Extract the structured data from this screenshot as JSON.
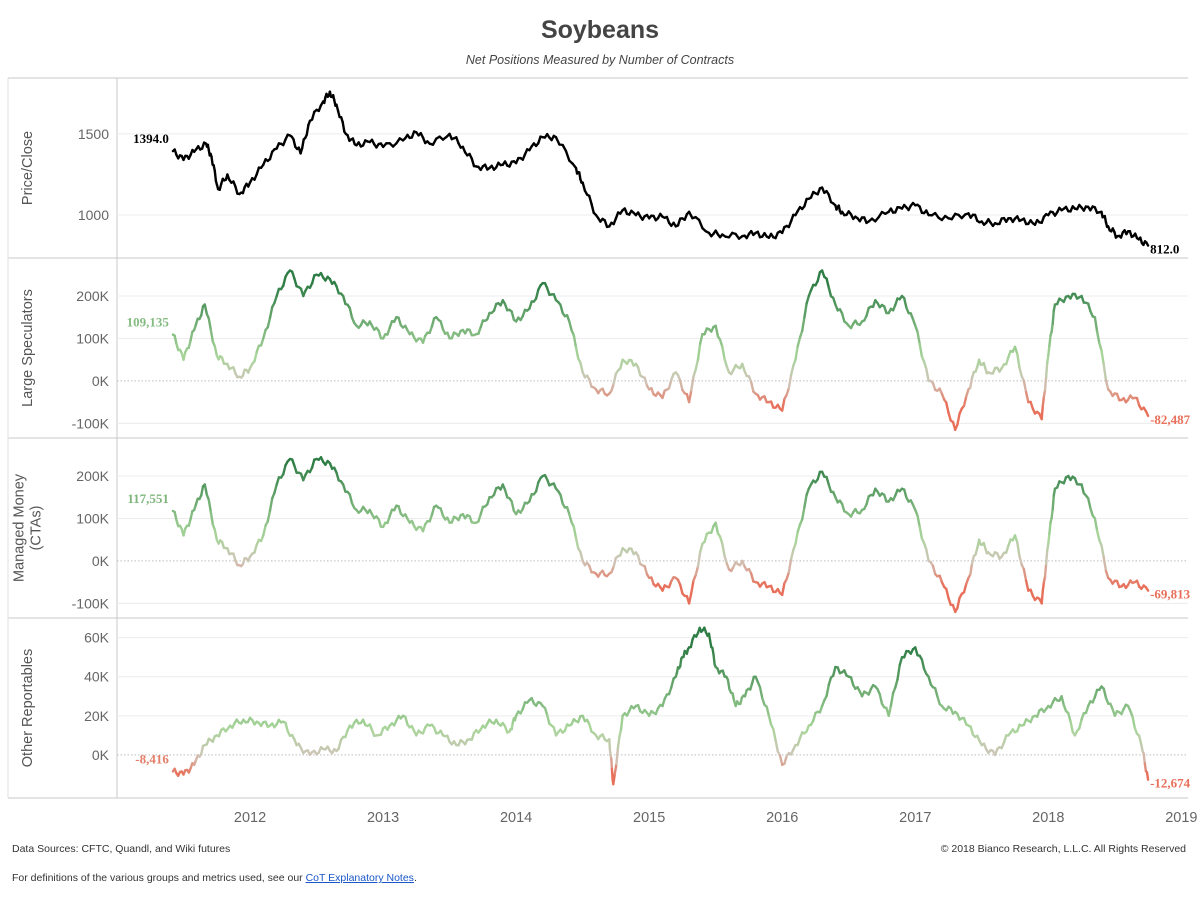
{
  "title": "Soybeans",
  "subtitle": "Net Positions Measured by Number of Contracts",
  "footer": {
    "sources": "Data Sources: CFTC, Quandl, and Wiki futures",
    "copyright": "© 2018 Bianco Research, L.L.C. All Rights Reserved",
    "definitions_prefix": "For definitions of the various groups and metrics used, see our ",
    "definitions_link": "CoT Explanatory Notes",
    "definitions_suffix": "."
  },
  "colors": {
    "price_line": "#000000",
    "positive_strong": "#2e7d45",
    "positive_light": "#a8d59a",
    "neutral": "#cfc5b8",
    "negative": "#e8705a"
  },
  "chart_data": {
    "type": "line",
    "x_axis": {
      "tick_labels": [
        "2012",
        "2013",
        "2014",
        "2015",
        "2016",
        "2017",
        "2018",
        "2019"
      ],
      "range": [
        2011.0,
        2019.05
      ]
    },
    "panels": [
      {
        "ylabel": "Price/Close",
        "ticks": [
          {
            "value": 1000,
            "label": "1000"
          },
          {
            "value": 1500,
            "label": "1500"
          }
        ],
        "ylim": [
          760,
          1820
        ],
        "start_label": "1394.0",
        "end_label": "812.0",
        "color_mode": "price",
        "series": {
          "x": [
            2011.42,
            2011.5,
            2011.58,
            2011.67,
            2011.71,
            2011.76,
            2011.83,
            2011.92,
            2012.0,
            2012.1,
            2012.2,
            2012.3,
            2012.38,
            2012.45,
            2012.55,
            2012.6,
            2012.65,
            2012.72,
            2012.8,
            2012.9,
            2013.0,
            2013.15,
            2013.25,
            2013.35,
            2013.5,
            2013.6,
            2013.7,
            2013.8,
            2013.9,
            2014.0,
            2014.1,
            2014.2,
            2014.3,
            2014.45,
            2014.5,
            2014.6,
            2014.7,
            2014.8,
            2014.9,
            2015.0,
            2015.1,
            2015.2,
            2015.3,
            2015.45,
            2015.55,
            2015.7,
            2015.8,
            2015.9,
            2016.0,
            2016.1,
            2016.2,
            2016.3,
            2016.4,
            2016.45,
            2016.55,
            2016.65,
            2016.8,
            2016.9,
            2017.0,
            2017.1,
            2017.25,
            2017.4,
            2017.5,
            2017.6,
            2017.7,
            2017.8,
            2017.9,
            2018.0,
            2018.1,
            2018.2,
            2018.3,
            2018.4,
            2018.45,
            2018.52,
            2018.6,
            2018.68,
            2018.75
          ],
          "y": [
            1394,
            1340,
            1390,
            1440,
            1360,
            1160,
            1250,
            1130,
            1200,
            1310,
            1410,
            1490,
            1380,
            1580,
            1700,
            1760,
            1680,
            1500,
            1430,
            1450,
            1420,
            1460,
            1510,
            1440,
            1500,
            1420,
            1300,
            1290,
            1310,
            1320,
            1400,
            1480,
            1480,
            1290,
            1200,
            1000,
            930,
            1030,
            1000,
            980,
            990,
            930,
            1020,
            890,
            880,
            870,
            890,
            860,
            890,
            1000,
            1100,
            1170,
            1060,
            1020,
            990,
            960,
            1020,
            1040,
            1060,
            1000,
            980,
            1010,
            960,
            950,
            980,
            970,
            940,
            1000,
            1030,
            1040,
            1050,
            1020,
            930,
            870,
            900,
            850,
            812
          ]
        }
      },
      {
        "ylabel": "Large Speculators",
        "ticks": [
          {
            "value": -100000,
            "label": "-100K"
          },
          {
            "value": 0,
            "label": "0K"
          },
          {
            "value": 100000,
            "label": "100K"
          },
          {
            "value": 200000,
            "label": "200K"
          }
        ],
        "ylim": [
          -125000,
          280000
        ],
        "start_label": "109,135",
        "end_label": "-82,487",
        "color_mode": "position",
        "series": {
          "x": [
            2011.42,
            2011.5,
            2011.58,
            2011.66,
            2011.75,
            2011.83,
            2011.92,
            2012.0,
            2012.1,
            2012.2,
            2012.3,
            2012.4,
            2012.5,
            2012.6,
            2012.7,
            2012.8,
            2012.9,
            2013.0,
            2013.1,
            2013.2,
            2013.3,
            2013.4,
            2013.5,
            2013.6,
            2013.7,
            2013.8,
            2013.9,
            2014.0,
            2014.1,
            2014.2,
            2014.3,
            2014.4,
            2014.5,
            2014.6,
            2014.7,
            2014.8,
            2014.9,
            2015.0,
            2015.1,
            2015.2,
            2015.3,
            2015.4,
            2015.5,
            2015.6,
            2015.7,
            2015.8,
            2015.9,
            2016.0,
            2016.1,
            2016.2,
            2016.3,
            2016.4,
            2016.5,
            2016.6,
            2016.7,
            2016.8,
            2016.9,
            2017.0,
            2017.1,
            2017.2,
            2017.3,
            2017.4,
            2017.48,
            2017.55,
            2017.65,
            2017.75,
            2017.85,
            2017.95,
            2018.0,
            2018.05,
            2018.15,
            2018.25,
            2018.35,
            2018.45,
            2018.55,
            2018.65,
            2018.75
          ],
          "y": [
            109135,
            50000,
            120000,
            180000,
            60000,
            40000,
            10000,
            30000,
            100000,
            200000,
            260000,
            200000,
            250000,
            240000,
            200000,
            130000,
            140000,
            100000,
            150000,
            110000,
            90000,
            150000,
            100000,
            120000,
            110000,
            160000,
            190000,
            140000,
            170000,
            230000,
            190000,
            140000,
            20000,
            -20000,
            -30000,
            50000,
            40000,
            -20000,
            -40000,
            20000,
            -50000,
            110000,
            130000,
            20000,
            40000,
            -30000,
            -50000,
            -70000,
            50000,
            200000,
            260000,
            180000,
            130000,
            140000,
            190000,
            160000,
            200000,
            130000,
            0,
            -30000,
            -115000,
            -20000,
            50000,
            20000,
            30000,
            80000,
            -50000,
            -90000,
            60000,
            180000,
            200000,
            200000,
            150000,
            -20000,
            -45000,
            -40000,
            -82487
          ]
        }
      },
      {
        "ylabel": "Managed Money (CTAs)",
        "ticks": [
          {
            "value": -100000,
            "label": "-100K"
          },
          {
            "value": 0,
            "label": "0K"
          },
          {
            "value": 100000,
            "label": "100K"
          },
          {
            "value": 200000,
            "label": "200K"
          }
        ],
        "ylim": [
          -125000,
          280000
        ],
        "start_label": "117,551",
        "end_label": "-69,813",
        "color_mode": "position",
        "series": {
          "x": [
            2011.42,
            2011.5,
            2011.58,
            2011.66,
            2011.75,
            2011.83,
            2011.92,
            2012.0,
            2012.1,
            2012.2,
            2012.3,
            2012.4,
            2012.5,
            2012.6,
            2012.7,
            2012.8,
            2012.9,
            2013.0,
            2013.1,
            2013.2,
            2013.3,
            2013.4,
            2013.5,
            2013.6,
            2013.7,
            2013.8,
            2013.9,
            2014.0,
            2014.1,
            2014.2,
            2014.3,
            2014.4,
            2014.5,
            2014.6,
            2014.7,
            2014.8,
            2014.9,
            2015.0,
            2015.1,
            2015.2,
            2015.3,
            2015.4,
            2015.5,
            2015.6,
            2015.7,
            2015.8,
            2015.9,
            2016.0,
            2016.1,
            2016.2,
            2016.3,
            2016.4,
            2016.5,
            2016.6,
            2016.7,
            2016.8,
            2016.9,
            2017.0,
            2017.1,
            2017.2,
            2017.3,
            2017.4,
            2017.48,
            2017.55,
            2017.65,
            2017.75,
            2017.85,
            2017.95,
            2018.0,
            2018.05,
            2018.15,
            2018.25,
            2018.35,
            2018.45,
            2018.55,
            2018.65,
            2018.75
          ],
          "y": [
            117551,
            60000,
            120000,
            180000,
            50000,
            30000,
            -10000,
            10000,
            60000,
            180000,
            240000,
            190000,
            240000,
            230000,
            180000,
            120000,
            120000,
            80000,
            130000,
            90000,
            70000,
            130000,
            90000,
            110000,
            90000,
            150000,
            180000,
            110000,
            140000,
            200000,
            170000,
            110000,
            0,
            -30000,
            -30000,
            30000,
            20000,
            -40000,
            -70000,
            -40000,
            -100000,
            40000,
            90000,
            -20000,
            0,
            -50000,
            -60000,
            -80000,
            40000,
            170000,
            210000,
            150000,
            110000,
            120000,
            170000,
            140000,
            170000,
            120000,
            0,
            -50000,
            -120000,
            -40000,
            50000,
            20000,
            10000,
            60000,
            -70000,
            -100000,
            40000,
            170000,
            200000,
            180000,
            100000,
            -40000,
            -60000,
            -50000,
            -69813
          ]
        }
      },
      {
        "ylabel": "Other Reportables",
        "ticks": [
          {
            "value": 0,
            "label": "0K"
          },
          {
            "value": 20000,
            "label": "20K"
          },
          {
            "value": 40000,
            "label": "40K"
          },
          {
            "value": 60000,
            "label": "60K"
          }
        ],
        "ylim": [
          -20000,
          68000
        ],
        "start_label": "-8,416",
        "end_label": "-12,674",
        "color_mode": "other",
        "series": {
          "x": [
            2011.42,
            2011.5,
            2011.58,
            2011.66,
            2011.75,
            2011.85,
            2011.95,
            2012.05,
            2012.15,
            2012.25,
            2012.35,
            2012.45,
            2012.55,
            2012.65,
            2012.75,
            2012.85,
            2012.95,
            2013.05,
            2013.15,
            2013.25,
            2013.35,
            2013.45,
            2013.55,
            2013.65,
            2013.75,
            2013.85,
            2013.95,
            2014.0,
            2014.1,
            2014.2,
            2014.3,
            2014.4,
            2014.5,
            2014.6,
            2014.7,
            2014.73,
            2014.8,
            2014.9,
            2015.0,
            2015.1,
            2015.2,
            2015.25,
            2015.3,
            2015.38,
            2015.45,
            2015.5,
            2015.58,
            2015.65,
            2015.72,
            2015.8,
            2015.9,
            2016.0,
            2016.1,
            2016.2,
            2016.3,
            2016.4,
            2016.5,
            2016.6,
            2016.7,
            2016.8,
            2016.9,
            2017.0,
            2017.1,
            2017.2,
            2017.3,
            2017.4,
            2017.5,
            2017.6,
            2017.7,
            2017.8,
            2017.9,
            2018.0,
            2018.1,
            2018.2,
            2018.3,
            2018.4,
            2018.5,
            2018.6,
            2018.7,
            2018.75
          ],
          "y": [
            -8416,
            -10000,
            -5000,
            5000,
            10000,
            15000,
            18000,
            17000,
            15000,
            17000,
            5000,
            0,
            3000,
            2000,
            15000,
            18000,
            10000,
            15000,
            20000,
            10000,
            15000,
            10000,
            5000,
            8000,
            15000,
            18000,
            12000,
            20000,
            28000,
            25000,
            10000,
            15000,
            20000,
            10000,
            8000,
            -15000,
            20000,
            25000,
            20000,
            25000,
            40000,
            50000,
            55000,
            65000,
            62000,
            45000,
            40000,
            25000,
            30000,
            40000,
            20000,
            -5000,
            5000,
            15000,
            25000,
            45000,
            40000,
            30000,
            35000,
            20000,
            50000,
            55000,
            40000,
            25000,
            22000,
            15000,
            5000,
            0,
            10000,
            15000,
            20000,
            25000,
            30000,
            10000,
            25000,
            35000,
            20000,
            25000,
            5000,
            -12674
          ]
        }
      }
    ]
  }
}
